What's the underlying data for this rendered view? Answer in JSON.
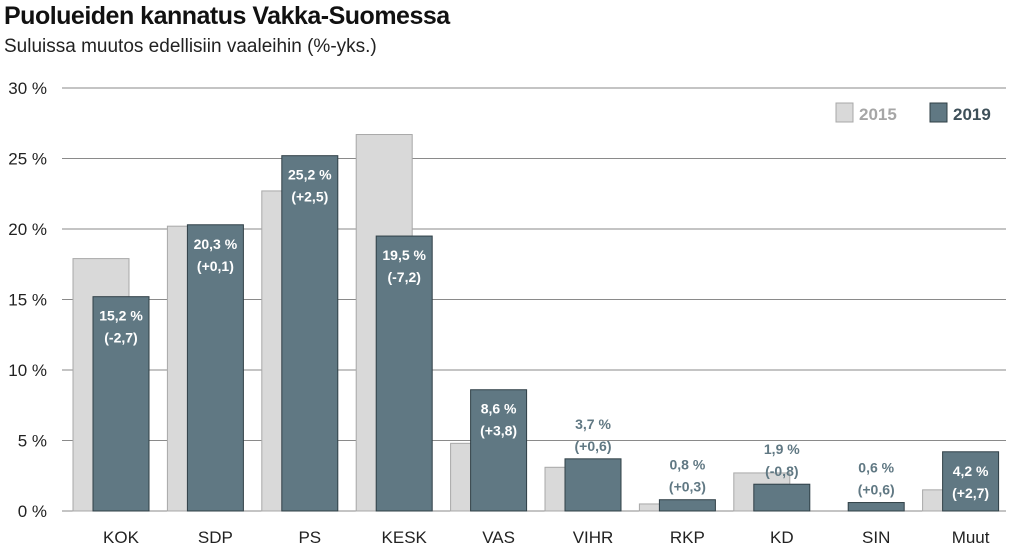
{
  "chart_data": {
    "type": "bar",
    "title": "Puolueiden kannatus Vakka-Suomessa",
    "subtitle": "Suluissa  muutos edellisiin vaaleihin (%-yks.)",
    "categories": [
      "KOK",
      "SDP",
      "PS",
      "KESK",
      "VAS",
      "VIHR",
      "RKP",
      "KD",
      "SIN",
      "Muut"
    ],
    "series": [
      {
        "name": "2015",
        "color": "#d9d9d9",
        "values": [
          17.9,
          20.2,
          22.7,
          26.7,
          4.8,
          3.1,
          0.5,
          2.7,
          0.0,
          1.5
        ]
      },
      {
        "name": "2019",
        "color": "#607883",
        "values": [
          15.2,
          20.3,
          25.2,
          19.5,
          8.6,
          3.7,
          0.8,
          1.9,
          0.6,
          4.2
        ]
      }
    ],
    "data_labels": [
      {
        "value": "15,2 %",
        "change": "(-2,7)"
      },
      {
        "value": "20,3 %",
        "change": "(+0,1)"
      },
      {
        "value": "25,2 %",
        "change": "(+2,5)"
      },
      {
        "value": "19,5 %",
        "change": "(-7,2)"
      },
      {
        "value": "8,6 %",
        "change": "(+3,8)"
      },
      {
        "value": "3,7 %",
        "change": "(+0,6)"
      },
      {
        "value": "0,8 %",
        "change": "(+0,3)"
      },
      {
        "value": "1,9 %",
        "change": "(-0,8)"
      },
      {
        "value": "0,6 %",
        "change": "(+0,6)"
      },
      {
        "value": "4,2 %",
        "change": "(+2,7)"
      }
    ],
    "y_ticks": [
      "0 %",
      "5 %",
      "10 %",
      "15 %",
      "20 %",
      "25 %",
      "30 %"
    ],
    "ylim": [
      0,
      30
    ],
    "y_step": 5,
    "grid": true,
    "legend_position": "top-right",
    "label_color_inside": "#ffffff",
    "label_color_outside": "#607883"
  }
}
